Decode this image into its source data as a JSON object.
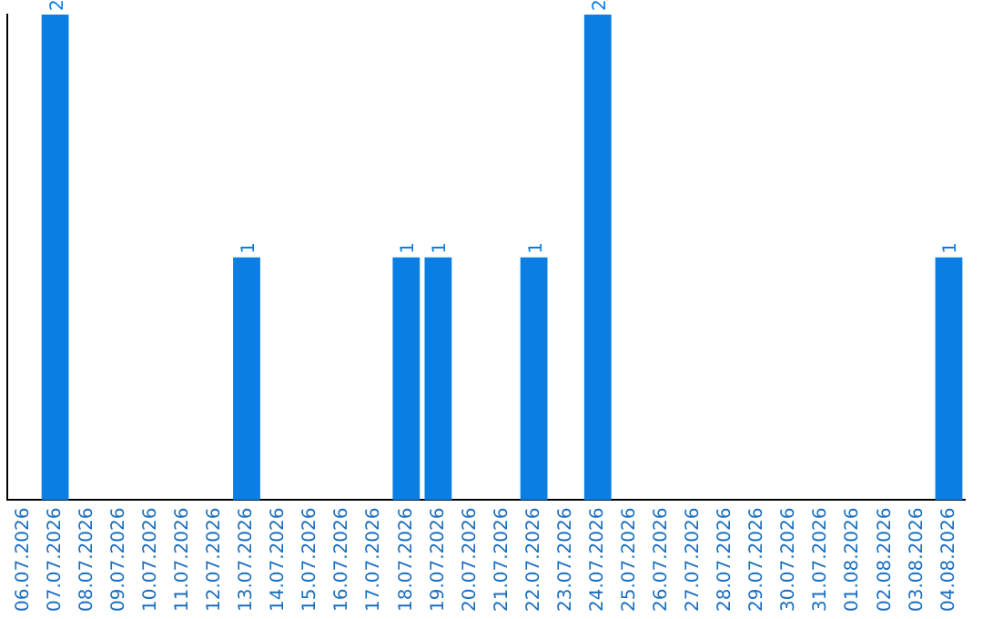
{
  "chart_data": {
    "type": "bar",
    "categories": [
      "06.07.2026",
      "07.07.2026",
      "08.07.2026",
      "09.07.2026",
      "10.07.2026",
      "11.07.2026",
      "12.07.2026",
      "13.07.2026",
      "14.07.2026",
      "15.07.2026",
      "16.07.2026",
      "17.07.2026",
      "18.07.2026",
      "19.07.2026",
      "20.07.2026",
      "21.07.2026",
      "22.07.2026",
      "23.07.2026",
      "24.07.2026",
      "25.07.2026",
      "26.07.2026",
      "27.07.2026",
      "28.07.2026",
      "29.07.2026",
      "30.07.2026",
      "31.07.2026",
      "01.08.2026",
      "02.08.2026",
      "03.08.2026",
      "04.08.2026"
    ],
    "values": [
      0,
      2,
      0,
      0,
      0,
      0,
      0,
      1,
      0,
      0,
      0,
      0,
      1,
      1,
      0,
      0,
      1,
      0,
      2,
      0,
      0,
      0,
      0,
      0,
      0,
      0,
      0,
      0,
      0,
      1
    ],
    "value_labels": [
      null,
      "2",
      null,
      null,
      null,
      null,
      null,
      "1",
      null,
      null,
      null,
      null,
      "1",
      "1",
      null,
      null,
      "1",
      null,
      "2",
      null,
      null,
      null,
      null,
      null,
      null,
      null,
      null,
      null,
      null,
      "1"
    ],
    "color": "#0a7ee3",
    "grid": false,
    "legend": false,
    "tick_labels": "x"
  }
}
